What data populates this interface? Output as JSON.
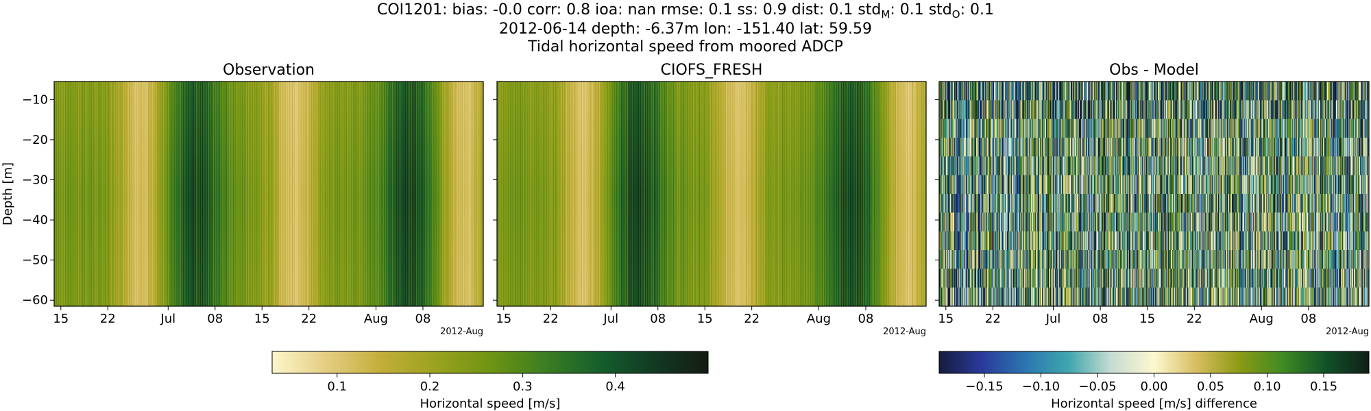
{
  "figure": {
    "suptitle": {
      "line1_prefix": "COI1201: bias: -0.0  corr: 0.8  ioa: nan  rmse: 0.1  ss: 0.9  dist: 0.1  std",
      "line1_sub_model": "M",
      "line1_mid": ": 0.1  std",
      "line1_sub_obs": "O",
      "line1_suffix": ": 0.1",
      "line2": "2012-06-14 depth: -6.37m lon: -151.40 lat: 59.59",
      "line3": "Tidal horizontal speed from moored ADCP"
    }
  },
  "chart_data": [
    {
      "type": "heatmap",
      "title": "Observation",
      "ylabel": "Depth [m]",
      "x_range": [
        "2012-06-14",
        "2012-08-17"
      ],
      "xtick_labels": [
        "15",
        "22",
        "Jul",
        "08",
        "15",
        "22",
        "Aug",
        "08"
      ],
      "xtick_dates": [
        "2012-06-15",
        "2012-06-22",
        "2012-07-01",
        "2012-07-08",
        "2012-07-15",
        "2012-07-22",
        "2012-08-01",
        "2012-08-08"
      ],
      "x_offset_label": "2012-Aug",
      "ylim": [
        -61.5,
        -5.5
      ],
      "yticks": [
        -10,
        -20,
        -30,
        -40,
        -50,
        -60
      ],
      "colormap": "speed",
      "value_range": [
        0.03,
        0.5
      ],
      "pattern": "tidal",
      "dark_periods": [
        "2012-07-05",
        "2012-08-06"
      ],
      "light_periods": [
        "2012-06-27",
        "2012-07-20",
        "2012-08-14"
      ]
    },
    {
      "type": "heatmap",
      "title": "CIOFS_FRESH",
      "x_range": [
        "2012-06-14",
        "2012-08-17"
      ],
      "xtick_labels": [
        "15",
        "22",
        "Jul",
        "08",
        "15",
        "22",
        "Aug",
        "08"
      ],
      "xtick_dates": [
        "2012-06-15",
        "2012-06-22",
        "2012-07-01",
        "2012-07-08",
        "2012-07-15",
        "2012-07-22",
        "2012-08-01",
        "2012-08-08"
      ],
      "x_offset_label": "2012-Aug",
      "ylim": [
        -61.5,
        -5.5
      ],
      "yticks": [
        -10,
        -20,
        -30,
        -40,
        -50,
        -60
      ],
      "colormap": "speed",
      "value_range": [
        0.03,
        0.5
      ],
      "pattern": "tidal",
      "dark_periods": [
        "2012-07-05",
        "2012-08-06"
      ],
      "light_periods": [
        "2012-06-27",
        "2012-07-20",
        "2012-08-14"
      ]
    },
    {
      "type": "heatmap",
      "title": "Obs - Model",
      "x_range": [
        "2012-06-14",
        "2012-08-17"
      ],
      "xtick_labels": [
        "15",
        "22",
        "Jul",
        "08",
        "15",
        "22",
        "Aug",
        "08"
      ],
      "xtick_dates": [
        "2012-06-15",
        "2012-06-22",
        "2012-07-01",
        "2012-07-08",
        "2012-07-15",
        "2012-07-22",
        "2012-08-01",
        "2012-08-08"
      ],
      "x_offset_label": "2012-Aug",
      "ylim": [
        -61.5,
        -5.5
      ],
      "yticks": [
        -10,
        -20,
        -30,
        -40,
        -50,
        -60
      ],
      "colormap": "balance-delta",
      "value_range": [
        -0.19,
        0.19
      ],
      "pattern": "noisy"
    }
  ],
  "colorbars": [
    {
      "label": "Horizontal speed [m/s]",
      "range": [
        0.03,
        0.5
      ],
      "ticks": [
        0.1,
        0.2,
        0.3,
        0.4
      ],
      "tick_labels": [
        "0.1",
        "0.2",
        "0.3",
        "0.4"
      ],
      "colors": [
        "#fdf6cb",
        "#e4cd82",
        "#c3ae3a",
        "#9aa21e",
        "#6f9412",
        "#3d7e22",
        "#155f2c",
        "#123a23",
        "#141c13"
      ]
    },
    {
      "label": "Horizontal speed [m/s] difference",
      "range": [
        -0.19,
        0.19
      ],
      "ticks": [
        -0.15,
        -0.1,
        -0.05,
        0.0,
        0.05,
        0.1,
        0.15
      ],
      "tick_labels": [
        "−0.15",
        "−0.10",
        "−0.05",
        "0.00",
        "0.05",
        "0.10",
        "0.15"
      ],
      "colors": [
        "#161b3c",
        "#2a3b9b",
        "#2b76b0",
        "#3ea6ae",
        "#c6dcd2",
        "#fdf8d0",
        "#d6bd5e",
        "#8a9a14",
        "#3f8a22",
        "#11522a",
        "#0f1f16"
      ]
    }
  ]
}
